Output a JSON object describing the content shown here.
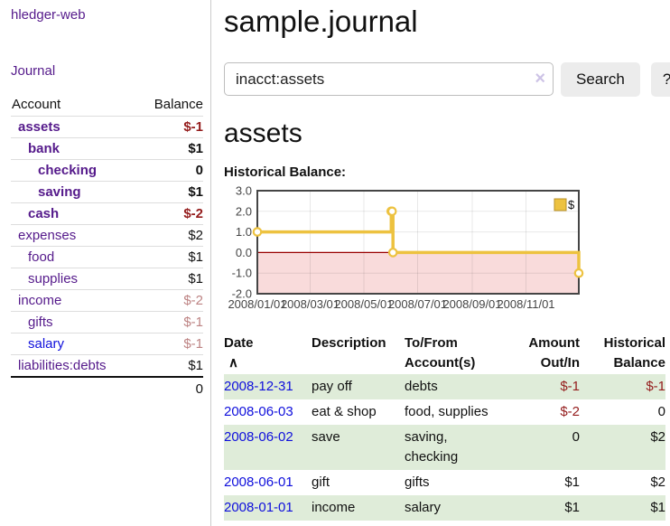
{
  "sidebar": {
    "brand": "hledger-web",
    "journal_link": "Journal",
    "headers": {
      "account": "Account",
      "balance": "Balance"
    },
    "accounts": [
      {
        "name": "assets",
        "balance": "$-1",
        "indent": 0
      },
      {
        "name": "bank",
        "balance": "$1",
        "indent": 1
      },
      {
        "name": "checking",
        "balance": "0",
        "indent": 2
      },
      {
        "name": "saving",
        "balance": "$1",
        "indent": 2
      },
      {
        "name": "cash",
        "balance": "$-2",
        "indent": 1
      },
      {
        "name": "expenses",
        "balance": "$2",
        "indent": 0
      },
      {
        "name": "food",
        "balance": "$1",
        "indent": 1
      },
      {
        "name": "supplies",
        "balance": "$1",
        "indent": 1
      },
      {
        "name": "income",
        "balance": "$-2",
        "indent": 0
      },
      {
        "name": "gifts",
        "balance": "$-1",
        "indent": 1
      },
      {
        "name": "salary",
        "balance": "$-1",
        "indent": 1
      },
      {
        "name": "liabilities:debts",
        "balance": "$1",
        "indent": 0
      }
    ],
    "total": "0"
  },
  "main": {
    "title": "sample.journal",
    "search": {
      "value": "inacct:assets",
      "clear_icon": "×",
      "button_label": "Search",
      "help_label": "?"
    },
    "account_heading": "assets",
    "chart_label": "Historical Balance:"
  },
  "chart_data": {
    "type": "line",
    "step": true,
    "title": "Historical Balance of assets",
    "series": [
      {
        "name": "$",
        "color": "#edc240",
        "points": [
          [
            "2008-01-01",
            1
          ],
          [
            "2008-06-01",
            2
          ],
          [
            "2008-06-02",
            2
          ],
          [
            "2008-06-03",
            0
          ],
          [
            "2008-12-31",
            -1
          ]
        ]
      }
    ],
    "xlim": [
      "2008-01-01",
      "2008-12-31"
    ],
    "ylim": [
      -2,
      3
    ],
    "yticks": [
      [
        3,
        "3.0"
      ],
      [
        2,
        "2.0"
      ],
      [
        1,
        "1.0"
      ],
      [
        0,
        "0.0"
      ],
      [
        -1,
        "-1.0"
      ],
      [
        -2,
        "-2.0"
      ]
    ],
    "xticks": [
      [
        "2008-01-01",
        "2008/01/01"
      ],
      [
        "2008-03-01",
        "2008/03/01"
      ],
      [
        "2008-05-01",
        "2008/05/01"
      ],
      [
        "2008-07-01",
        "2008/07/01"
      ],
      [
        "2008-09-01",
        "2008/09/01"
      ],
      [
        "2008-11-01",
        "2008/11/01"
      ]
    ],
    "legend": [
      {
        "label": "$",
        "color": "#edc240"
      }
    ],
    "legend_position": "top-right",
    "grid": true,
    "negative_fill": "#f9dbdb",
    "zero_line_color": "#990000"
  },
  "register": {
    "headers": {
      "date": "Date",
      "sort_icon": "∧",
      "description": "Description",
      "accounts_line1": "To/From",
      "accounts_line2": "Account(s)",
      "amount_line1": "Amount",
      "amount_line2": "Out/In",
      "balance_line1": "Historical",
      "balance_line2": "Balance"
    },
    "rows": [
      {
        "date": "2008-12-31",
        "description": "pay off",
        "accounts": "debts",
        "amount": "$-1",
        "balance": "$-1"
      },
      {
        "date": "2008-06-03",
        "description": "eat & shop",
        "accounts": "food, supplies",
        "amount": "$-2",
        "balance": "0"
      },
      {
        "date": "2008-06-02",
        "description": "save",
        "accounts": "saving, checking",
        "amount": "0",
        "balance": "$2"
      },
      {
        "date": "2008-06-01",
        "description": "gift",
        "accounts": "gifts",
        "amount": "$1",
        "balance": "$2"
      },
      {
        "date": "2008-01-01",
        "description": "income",
        "accounts": "salary",
        "amount": "$1",
        "balance": "$1"
      }
    ]
  },
  "colors": {
    "link_purple": "#551a8b",
    "link_blue": "#0f0fdc",
    "negative": "#941c1c",
    "negative_dim": "#bd8383",
    "row_green": "#dfecd9",
    "series_gold": "#edc240",
    "chart_negative_zone": "#f9dbdb",
    "chart_zero_line": "#990000"
  }
}
